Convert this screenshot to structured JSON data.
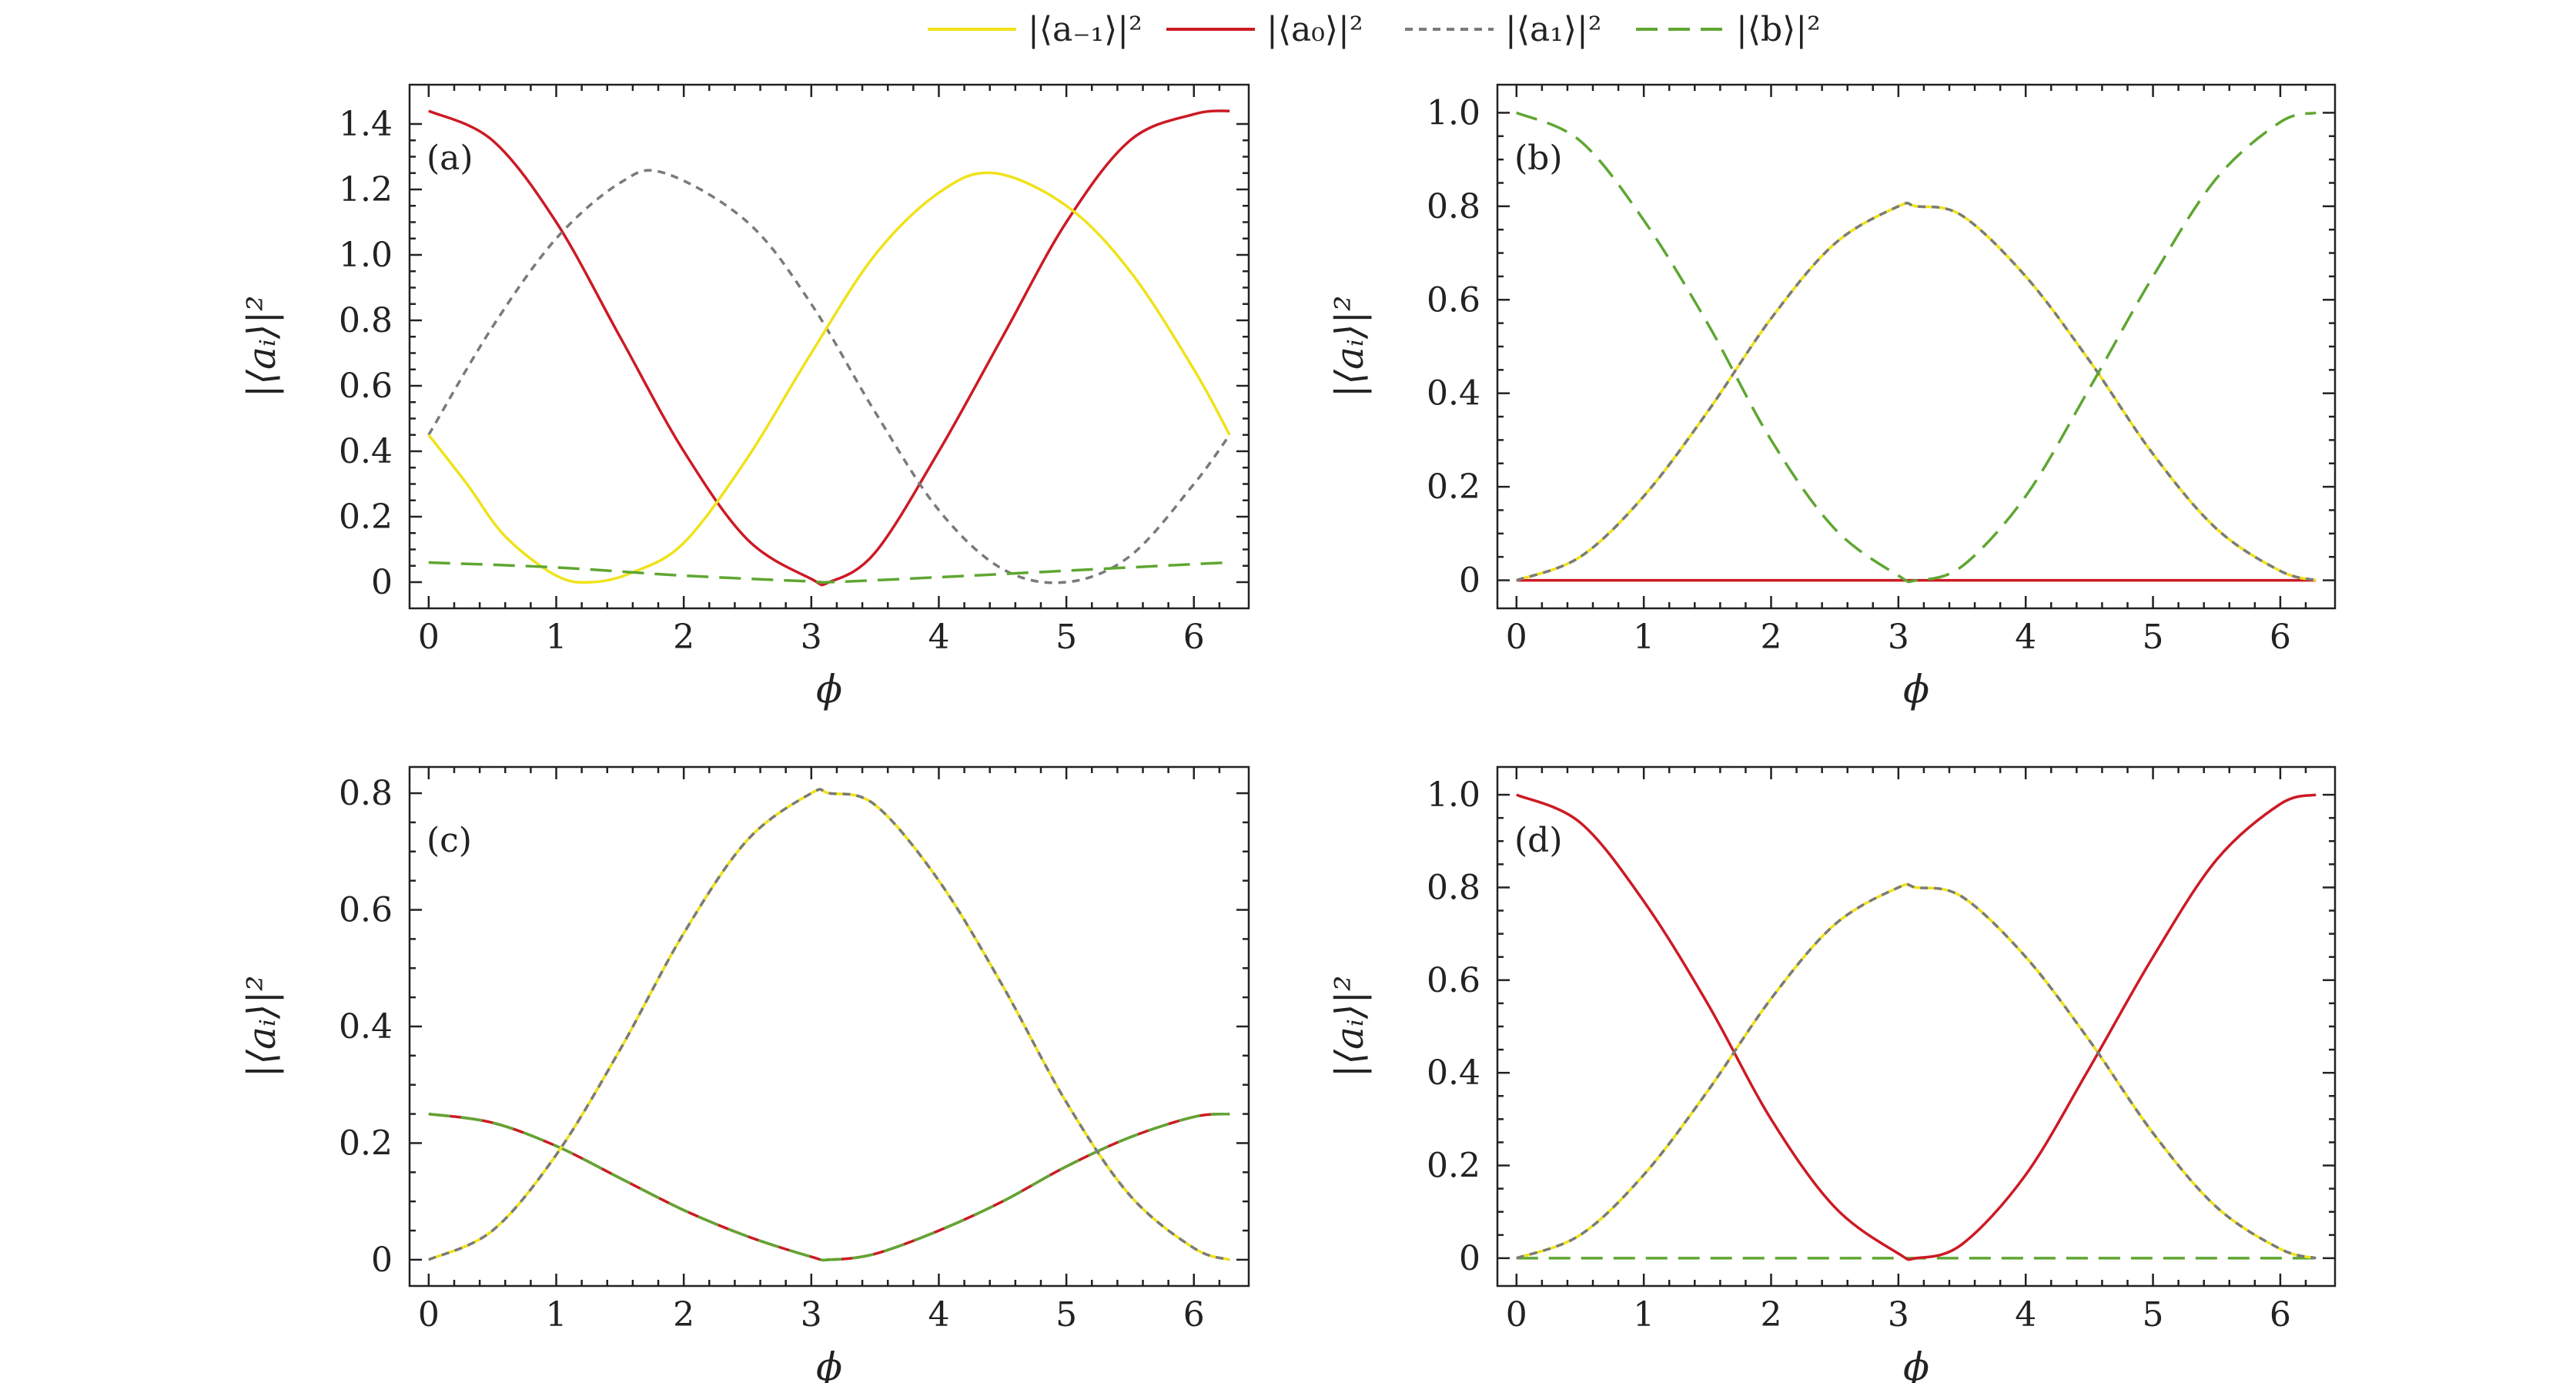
{
  "legend": {
    "placement": "top-center",
    "entries": [
      {
        "key": "am1",
        "label": "|⟨a₋₁⟩|²",
        "color": "#f0e21a",
        "dash": "solid"
      },
      {
        "key": "a0",
        "label": "|⟨a₀⟩|²",
        "color": "#cc1a24",
        "dash": "solid"
      },
      {
        "key": "a1",
        "label": "|⟨a₁⟩|²",
        "color": "#7a7a7a",
        "dash": "short"
      },
      {
        "key": "b",
        "label": "|⟨b⟩|²",
        "color": "#5fa632",
        "dash": "long"
      }
    ]
  },
  "chart_data": [
    {
      "type": "line",
      "panel_label": "(a)",
      "xlabel": "ϕ",
      "ylabel": "|⟨aᵢ⟩|²",
      "xlim": [
        -0.15,
        6.43
      ],
      "ylim": [
        -0.08,
        1.52
      ],
      "xticks": [
        0,
        1,
        2,
        3,
        4,
        5,
        6
      ],
      "yticks": [
        0,
        0.2,
        0.4,
        0.6,
        0.8,
        1.0,
        1.2,
        1.4
      ],
      "ytick_labels": [
        "0",
        "0.2",
        "0.4",
        "0.6",
        "0.8",
        "1.0",
        "1.2",
        "1.4"
      ],
      "grid": false,
      "series": [
        {
          "key": "a0",
          "x": [
            0,
            0.5,
            1,
            1.5,
            2,
            2.5,
            3,
            3.14,
            3.5,
            4,
            4.5,
            5,
            5.5,
            6,
            6.28
          ],
          "y": [
            1.44,
            1.35,
            1.1,
            0.75,
            0.4,
            0.13,
            0.01,
            0.0,
            0.09,
            0.4,
            0.75,
            1.1,
            1.35,
            1.43,
            1.44
          ]
        },
        {
          "key": "a1",
          "x": [
            0,
            0.5,
            1,
            1.5,
            1.85,
            2.5,
            3,
            3.5,
            4,
            4.5,
            5.0,
            5.5,
            6,
            6.28
          ],
          "y": [
            0.45,
            0.78,
            1.05,
            1.22,
            1.25,
            1.1,
            0.85,
            0.52,
            0.22,
            0.04,
            0.0,
            0.08,
            0.3,
            0.45
          ]
        },
        {
          "key": "am1",
          "x": [
            0,
            0.3,
            0.6,
            1,
            1.28,
            1.6,
            2,
            2.5,
            3,
            3.5,
            4,
            4.43,
            5,
            5.5,
            6,
            6.28
          ],
          "y": [
            0.45,
            0.3,
            0.14,
            0.02,
            0.0,
            0.03,
            0.12,
            0.38,
            0.7,
            1.0,
            1.19,
            1.25,
            1.15,
            0.95,
            0.65,
            0.45
          ]
        },
        {
          "key": "b",
          "x": [
            0,
            1,
            2,
            3,
            3.14,
            4,
            5,
            6,
            6.28
          ],
          "y": [
            0.06,
            0.045,
            0.02,
            0.002,
            0.0,
            0.015,
            0.035,
            0.055,
            0.06
          ]
        }
      ]
    },
    {
      "type": "line",
      "panel_label": "(b)",
      "xlabel": "ϕ",
      "ylabel": "|⟨aᵢ⟩|²",
      "xlim": [
        -0.15,
        6.43
      ],
      "ylim": [
        -0.06,
        1.06
      ],
      "xticks": [
        0,
        1,
        2,
        3,
        4,
        5,
        6
      ],
      "yticks": [
        0,
        0.2,
        0.4,
        0.6,
        0.8,
        1.0
      ],
      "ytick_labels": [
        "0",
        "0.2",
        "0.4",
        "0.6",
        "0.8",
        "1.0"
      ],
      "grid": false,
      "series": [
        {
          "key": "a0",
          "x": [
            0,
            6.28
          ],
          "y": [
            0,
            0
          ]
        },
        {
          "key": "am1",
          "x": [
            0,
            0.5,
            1,
            1.5,
            2,
            2.5,
            3,
            3.14,
            3.5,
            4,
            4.5,
            5,
            5.5,
            6,
            6.28
          ],
          "y": [
            0.0,
            0.05,
            0.18,
            0.36,
            0.56,
            0.72,
            0.8,
            0.8,
            0.78,
            0.65,
            0.47,
            0.27,
            0.11,
            0.02,
            0.0
          ]
        },
        {
          "key": "a1",
          "x": [
            0,
            0.5,
            1,
            1.5,
            2,
            2.5,
            3,
            3.14,
            3.5,
            4,
            4.5,
            5,
            5.5,
            6,
            6.28
          ],
          "y": [
            0.0,
            0.05,
            0.18,
            0.36,
            0.56,
            0.72,
            0.8,
            0.8,
            0.78,
            0.65,
            0.47,
            0.27,
            0.11,
            0.02,
            0.0
          ]
        },
        {
          "key": "b",
          "x": [
            0,
            0.5,
            1,
            1.5,
            2,
            2.5,
            3,
            3.14,
            3.5,
            4,
            4.5,
            5,
            5.5,
            6,
            6.28
          ],
          "y": [
            1.0,
            0.94,
            0.77,
            0.55,
            0.3,
            0.11,
            0.01,
            0.0,
            0.03,
            0.18,
            0.41,
            0.65,
            0.86,
            0.98,
            1.0
          ]
        }
      ]
    },
    {
      "type": "line",
      "panel_label": "(c)",
      "xlabel": "ϕ",
      "ylabel": "|⟨aᵢ⟩|²",
      "xlim": [
        -0.15,
        6.43
      ],
      "ylim": [
        -0.045,
        0.845
      ],
      "xticks": [
        0,
        1,
        2,
        3,
        4,
        5,
        6
      ],
      "yticks": [
        0,
        0.2,
        0.4,
        0.6,
        0.8
      ],
      "ytick_labels": [
        "0",
        "0.2",
        "0.4",
        "0.6",
        "0.8"
      ],
      "grid": false,
      "series": [
        {
          "key": "a0",
          "x": [
            0,
            0.5,
            1,
            1.5,
            2,
            2.5,
            3,
            3.14,
            3.5,
            4,
            4.5,
            5,
            5.5,
            6,
            6.28
          ],
          "y": [
            0.25,
            0.235,
            0.195,
            0.14,
            0.085,
            0.04,
            0.005,
            0.0,
            0.01,
            0.05,
            0.1,
            0.16,
            0.21,
            0.245,
            0.25
          ]
        },
        {
          "key": "b",
          "x": [
            0,
            0.5,
            1,
            1.5,
            2,
            2.5,
            3,
            3.14,
            3.5,
            4,
            4.5,
            5,
            5.5,
            6,
            6.28
          ],
          "y": [
            0.25,
            0.235,
            0.195,
            0.14,
            0.085,
            0.04,
            0.005,
            0.0,
            0.01,
            0.05,
            0.1,
            0.16,
            0.21,
            0.245,
            0.25
          ]
        },
        {
          "key": "am1",
          "x": [
            0,
            0.5,
            1,
            1.5,
            2,
            2.5,
            3,
            3.14,
            3.5,
            4,
            4.5,
            5,
            5.5,
            6,
            6.28
          ],
          "y": [
            0.0,
            0.05,
            0.18,
            0.36,
            0.56,
            0.72,
            0.8,
            0.8,
            0.78,
            0.65,
            0.47,
            0.27,
            0.11,
            0.02,
            0.0
          ]
        },
        {
          "key": "a1",
          "x": [
            0,
            0.5,
            1,
            1.5,
            2,
            2.5,
            3,
            3.14,
            3.5,
            4,
            4.5,
            5,
            5.5,
            6,
            6.28
          ],
          "y": [
            0.0,
            0.05,
            0.18,
            0.36,
            0.56,
            0.72,
            0.8,
            0.8,
            0.78,
            0.65,
            0.47,
            0.27,
            0.11,
            0.02,
            0.0
          ]
        }
      ]
    },
    {
      "type": "line",
      "panel_label": "(d)",
      "xlabel": "ϕ",
      "ylabel": "|⟨aᵢ⟩|²",
      "xlim": [
        -0.15,
        6.43
      ],
      "ylim": [
        -0.06,
        1.06
      ],
      "xticks": [
        0,
        1,
        2,
        3,
        4,
        5,
        6
      ],
      "yticks": [
        0,
        0.2,
        0.4,
        0.6,
        0.8,
        1.0
      ],
      "ytick_labels": [
        "0",
        "0.2",
        "0.4",
        "0.6",
        "0.8",
        "1.0"
      ],
      "grid": false,
      "series": [
        {
          "key": "b",
          "x": [
            0,
            6.28
          ],
          "y": [
            0,
            0
          ]
        },
        {
          "key": "a0",
          "x": [
            0,
            0.5,
            1,
            1.5,
            2,
            2.5,
            3,
            3.14,
            3.5,
            4,
            4.5,
            5,
            5.5,
            6,
            6.28
          ],
          "y": [
            1.0,
            0.94,
            0.77,
            0.55,
            0.3,
            0.11,
            0.01,
            0.0,
            0.03,
            0.18,
            0.41,
            0.65,
            0.86,
            0.98,
            1.0
          ]
        },
        {
          "key": "am1",
          "x": [
            0,
            0.5,
            1,
            1.5,
            2,
            2.5,
            3,
            3.14,
            3.5,
            4,
            4.5,
            5,
            5.5,
            6,
            6.28
          ],
          "y": [
            0.0,
            0.05,
            0.18,
            0.36,
            0.56,
            0.72,
            0.8,
            0.8,
            0.78,
            0.65,
            0.47,
            0.27,
            0.11,
            0.02,
            0.0
          ]
        },
        {
          "key": "a1",
          "x": [
            0,
            0.5,
            1,
            1.5,
            2,
            2.5,
            3,
            3.14,
            3.5,
            4,
            4.5,
            5,
            5.5,
            6,
            6.28
          ],
          "y": [
            0.0,
            0.05,
            0.18,
            0.36,
            0.56,
            0.72,
            0.8,
            0.8,
            0.78,
            0.65,
            0.47,
            0.27,
            0.11,
            0.02,
            0.0
          ]
        }
      ]
    }
  ]
}
